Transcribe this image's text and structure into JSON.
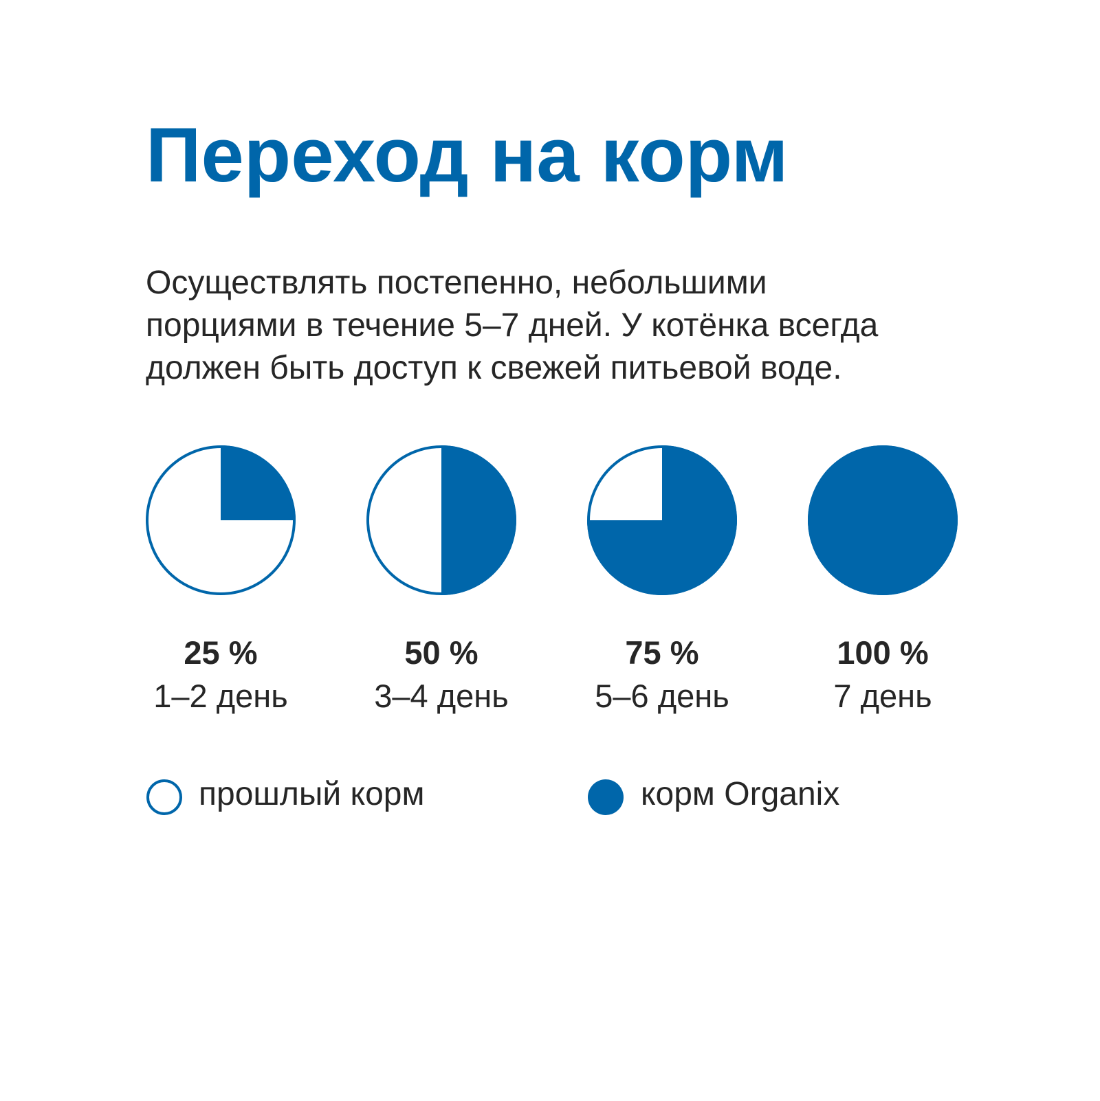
{
  "title": "Переход на корм",
  "description": [
    "Осуществлять постепенно, небольшими",
    "порциями в течение 5–7 дней. У котёнка всегда",
    "должен быть доступ к свежей питьевой воде."
  ],
  "colors": {
    "accent": "#0066AA",
    "text": "#262626",
    "background": "#FFFFFF"
  },
  "chart_data": {
    "type": "pie",
    "title": "",
    "unit": "%",
    "series": [
      {
        "name": "корм Organix",
        "values": [
          25,
          50,
          75,
          100
        ]
      }
    ],
    "categories": [
      "1–2 день",
      "3–4 день",
      "5–6 день",
      "7 день"
    ],
    "value_labels": [
      "25 %",
      "50 %",
      "75 %",
      "100 %"
    ]
  },
  "legend": {
    "old_food": "прошлый корм",
    "new_food": "корм Organix"
  }
}
